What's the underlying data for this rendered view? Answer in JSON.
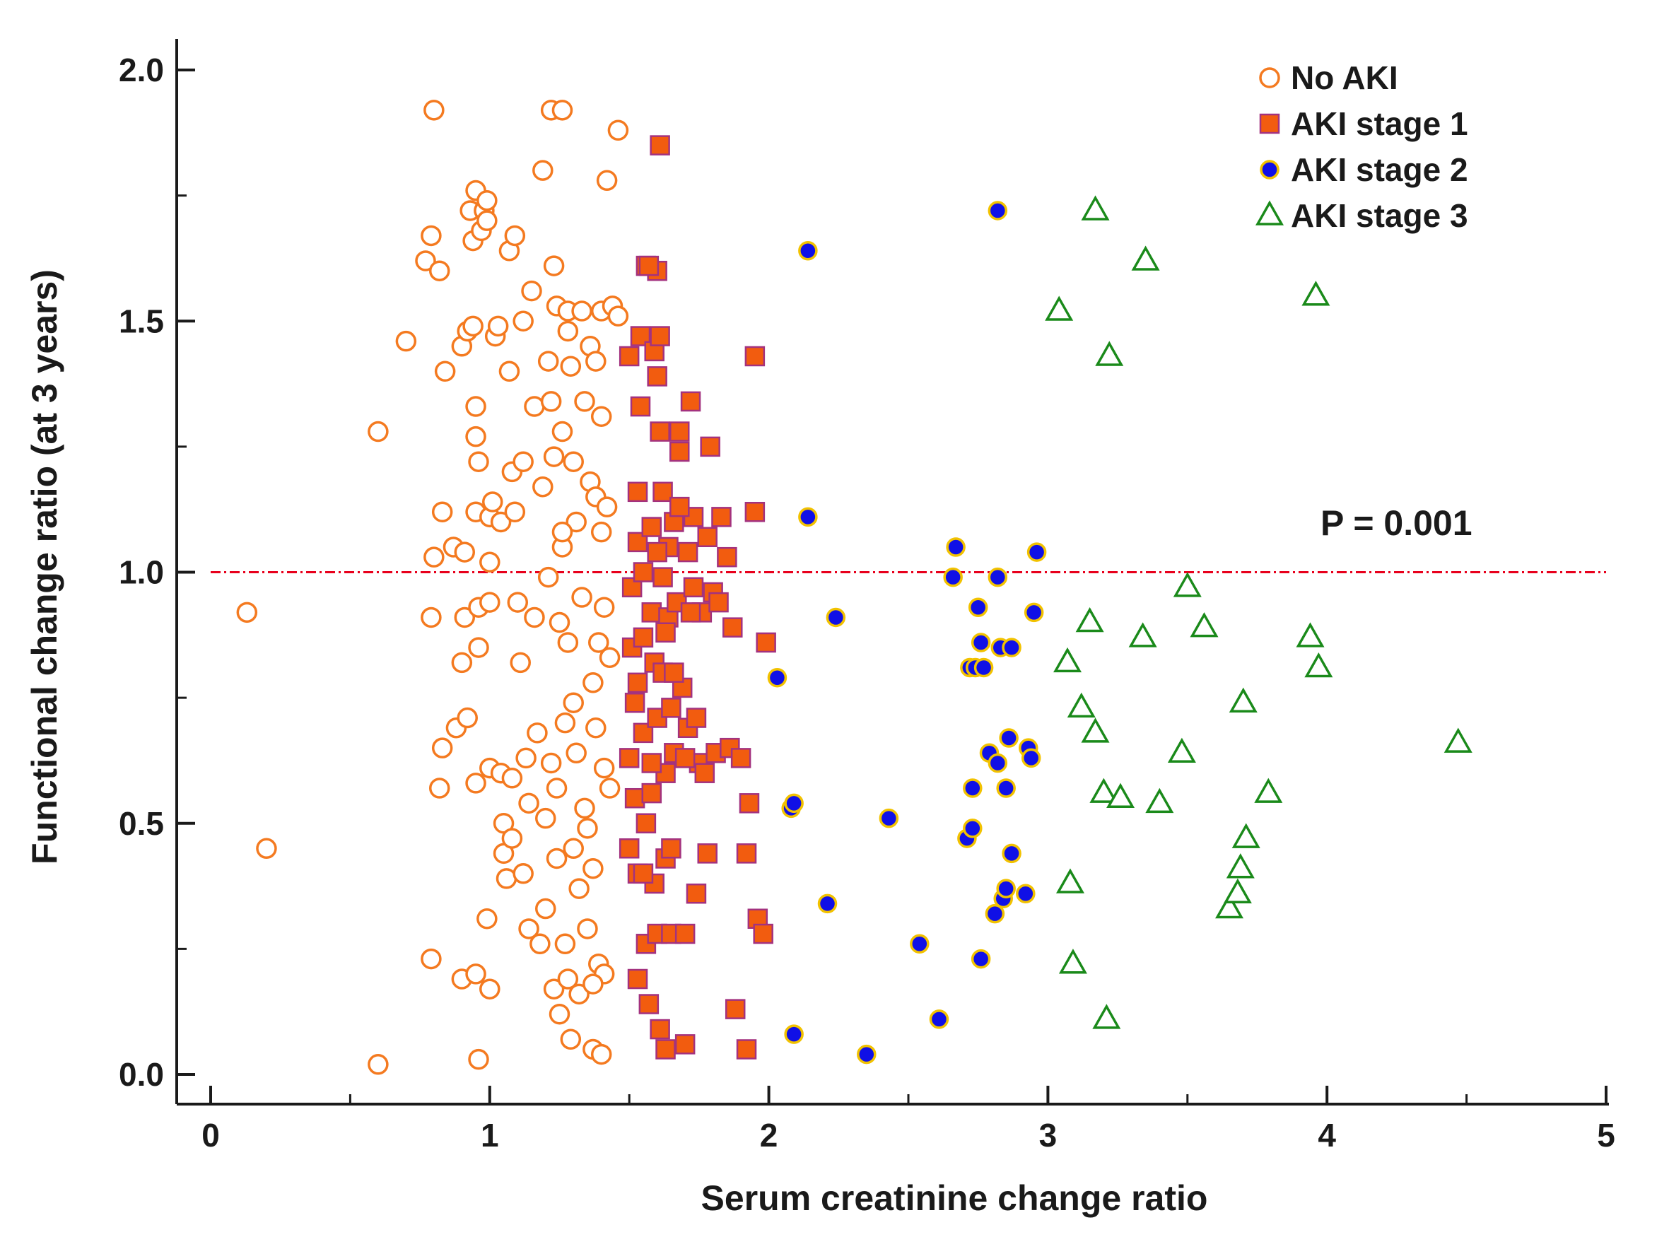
{
  "chart_data": {
    "type": "scatter",
    "title": "",
    "xlabel": "Serum creatinine change ratio",
    "ylabel": "Functional change ratio (at 3 years)",
    "xlim": [
      0,
      5
    ],
    "ylim": [
      0,
      2
    ],
    "x_ticks": [
      "0",
      "1",
      "2",
      "3",
      "4",
      "5"
    ],
    "y_ticks": [
      "0.0",
      "0.5",
      "1.0",
      "1.5",
      "2.0"
    ],
    "reference_line": {
      "y": 1.0,
      "color": "#e8001c",
      "style": "dash-dot"
    },
    "annotation": "P = 0.001",
    "legend_position": "top-right",
    "grid": false,
    "series": [
      {
        "name": "No AKI",
        "marker": "open-circle",
        "color": "#f47a20",
        "points": [
          [
            0.13,
            0.92
          ],
          [
            0.2,
            0.45
          ],
          [
            0.6,
            0.02
          ],
          [
            0.6,
            1.28
          ],
          [
            0.7,
            1.46
          ],
          [
            0.77,
            1.62
          ],
          [
            0.79,
            1.67
          ],
          [
            0.8,
            1.92
          ],
          [
            0.8,
            1.03
          ],
          [
            0.79,
            0.91
          ],
          [
            0.79,
            0.23
          ],
          [
            0.82,
            1.6
          ],
          [
            0.83,
            1.12
          ],
          [
            0.83,
            0.65
          ],
          [
            0.82,
            0.57
          ],
          [
            0.84,
            1.4
          ],
          [
            0.87,
            1.05
          ],
          [
            0.88,
            0.69
          ],
          [
            0.9,
            1.45
          ],
          [
            0.9,
            0.82
          ],
          [
            0.9,
            0.19
          ],
          [
            0.91,
            1.04
          ],
          [
            0.92,
            0.71
          ],
          [
            0.91,
            0.91
          ],
          [
            0.92,
            1.48
          ],
          [
            0.93,
            1.72
          ],
          [
            0.94,
            1.66
          ],
          [
            0.94,
            1.49
          ],
          [
            0.95,
            1.76
          ],
          [
            0.95,
            1.33
          ],
          [
            0.95,
            1.27
          ],
          [
            0.96,
            1.22
          ],
          [
            0.95,
            1.12
          ],
          [
            0.96,
            0.93
          ],
          [
            0.96,
            0.85
          ],
          [
            0.95,
            0.58
          ],
          [
            0.95,
            0.2
          ],
          [
            0.96,
            0.03
          ],
          [
            0.97,
            1.68
          ],
          [
            0.98,
            1.72
          ],
          [
            0.99,
            1.74
          ],
          [
            0.99,
            1.7
          ],
          [
            1.0,
            1.11
          ],
          [
            1.0,
            1.02
          ],
          [
            1.0,
            0.94
          ],
          [
            1.0,
            0.61
          ],
          [
            0.99,
            0.31
          ],
          [
            1.0,
            0.17
          ],
          [
            1.01,
            1.14
          ],
          [
            1.02,
            1.47
          ],
          [
            1.03,
            1.49
          ],
          [
            1.04,
            1.1
          ],
          [
            1.04,
            0.6
          ],
          [
            1.05,
            0.44
          ],
          [
            1.05,
            0.5
          ],
          [
            1.06,
            0.39
          ],
          [
            1.07,
            1.4
          ],
          [
            1.07,
            1.64
          ],
          [
            1.08,
            1.2
          ],
          [
            1.08,
            0.59
          ],
          [
            1.08,
            0.47
          ],
          [
            1.09,
            1.12
          ],
          [
            1.09,
            1.67
          ],
          [
            1.1,
            0.94
          ],
          [
            1.11,
            0.82
          ],
          [
            1.12,
            1.5
          ],
          [
            1.12,
            1.22
          ],
          [
            1.12,
            0.4
          ],
          [
            1.13,
            0.63
          ],
          [
            1.14,
            0.54
          ],
          [
            1.14,
            0.29
          ],
          [
            1.15,
            1.56
          ],
          [
            1.16,
            1.33
          ],
          [
            1.16,
            0.91
          ],
          [
            1.17,
            0.68
          ],
          [
            1.18,
            0.26
          ],
          [
            1.19,
            1.8
          ],
          [
            1.19,
            1.17
          ],
          [
            1.2,
            0.51
          ],
          [
            1.2,
            0.33
          ],
          [
            1.21,
            1.42
          ],
          [
            1.21,
            0.99
          ],
          [
            1.22,
            1.92
          ],
          [
            1.22,
            1.34
          ],
          [
            1.22,
            0.62
          ],
          [
            1.23,
            1.61
          ],
          [
            1.23,
            1.23
          ],
          [
            1.23,
            0.17
          ],
          [
            1.24,
            1.53
          ],
          [
            1.24,
            0.57
          ],
          [
            1.25,
            0.9
          ],
          [
            1.25,
            0.12
          ],
          [
            1.26,
            1.92
          ],
          [
            1.26,
            1.28
          ],
          [
            1.26,
            1.05
          ],
          [
            1.27,
            0.7
          ],
          [
            1.27,
            0.26
          ],
          [
            1.28,
            1.52
          ],
          [
            1.28,
            1.48
          ],
          [
            1.28,
            0.86
          ],
          [
            1.29,
            1.41
          ],
          [
            1.29,
            0.07
          ],
          [
            1.3,
            1.22
          ],
          [
            1.3,
            0.45
          ],
          [
            1.31,
            1.1
          ],
          [
            1.31,
            0.64
          ],
          [
            1.32,
            0.16
          ],
          [
            1.33,
            1.52
          ],
          [
            1.33,
            0.95
          ],
          [
            1.34,
            1.34
          ],
          [
            1.34,
            0.53
          ],
          [
            1.35,
            0.29
          ],
          [
            1.36,
            1.45
          ],
          [
            1.36,
            1.18
          ],
          [
            1.37,
            0.78
          ],
          [
            1.37,
            0.41
          ],
          [
            1.37,
            0.05
          ],
          [
            1.38,
            1.42
          ],
          [
            1.38,
            1.15
          ],
          [
            1.38,
            0.69
          ],
          [
            1.39,
            0.86
          ],
          [
            1.39,
            0.22
          ],
          [
            1.4,
            1.52
          ],
          [
            1.4,
            1.31
          ],
          [
            1.4,
            1.08
          ],
          [
            1.41,
            0.93
          ],
          [
            1.41,
            0.61
          ],
          [
            1.41,
            0.2
          ],
          [
            1.42,
            1.78
          ],
          [
            1.42,
            1.13
          ],
          [
            1.43,
            0.57
          ],
          [
            1.43,
            0.83
          ],
          [
            1.44,
            1.53
          ],
          [
            1.46,
            1.88
          ],
          [
            1.46,
            1.51
          ],
          [
            1.4,
            0.04
          ],
          [
            1.37,
            0.18
          ],
          [
            1.35,
            0.49
          ],
          [
            1.32,
            0.37
          ],
          [
            1.3,
            0.74
          ],
          [
            1.28,
            0.19
          ],
          [
            1.26,
            1.08
          ],
          [
            1.24,
            0.43
          ]
        ]
      },
      {
        "name": "AKI stage 1",
        "marker": "filled-square",
        "color": "#f25c0f",
        "stroke": "#a3327f",
        "points": [
          [
            1.5,
            1.43
          ],
          [
            1.5,
            0.63
          ],
          [
            1.5,
            0.45
          ],
          [
            1.51,
            0.97
          ],
          [
            1.51,
            0.85
          ],
          [
            1.52,
            0.74
          ],
          [
            1.52,
            0.55
          ],
          [
            1.53,
            1.16
          ],
          [
            1.53,
            1.06
          ],
          [
            1.53,
            0.78
          ],
          [
            1.53,
            0.4
          ],
          [
            1.53,
            0.19
          ],
          [
            1.54,
            1.47
          ],
          [
            1.54,
            1.33
          ],
          [
            1.55,
            1.0
          ],
          [
            1.55,
            0.87
          ],
          [
            1.55,
            0.68
          ],
          [
            1.56,
            1.61
          ],
          [
            1.56,
            0.5
          ],
          [
            1.56,
            0.26
          ],
          [
            1.57,
            0.14
          ],
          [
            1.58,
            1.09
          ],
          [
            1.58,
            0.92
          ],
          [
            1.58,
            0.56
          ],
          [
            1.59,
            1.44
          ],
          [
            1.59,
            0.82
          ],
          [
            1.59,
            0.38
          ],
          [
            1.6,
            1.6
          ],
          [
            1.6,
            1.39
          ],
          [
            1.6,
            0.71
          ],
          [
            1.6,
            0.28
          ],
          [
            1.61,
            1.85
          ],
          [
            1.61,
            1.47
          ],
          [
            1.61,
            1.28
          ],
          [
            1.61,
            0.09
          ],
          [
            1.62,
            1.16
          ],
          [
            1.62,
            0.99
          ],
          [
            1.62,
            0.8
          ],
          [
            1.63,
            0.6
          ],
          [
            1.63,
            0.43
          ],
          [
            1.63,
            0.05
          ],
          [
            1.64,
            1.05
          ],
          [
            1.64,
            0.91
          ],
          [
            1.65,
            0.73
          ],
          [
            1.65,
            0.28
          ],
          [
            1.66,
            1.1
          ],
          [
            1.66,
            0.64
          ],
          [
            1.67,
            0.94
          ],
          [
            1.68,
            1.28
          ],
          [
            1.68,
            1.24
          ],
          [
            1.69,
            0.77
          ],
          [
            1.7,
            0.28
          ],
          [
            1.7,
            0.06
          ],
          [
            1.71,
            1.04
          ],
          [
            1.71,
            0.69
          ],
          [
            1.72,
            1.34
          ],
          [
            1.73,
            1.11
          ],
          [
            1.73,
            0.97
          ],
          [
            1.74,
            0.71
          ],
          [
            1.74,
            0.36
          ],
          [
            1.75,
            0.62
          ],
          [
            1.76,
            0.92
          ],
          [
            1.77,
            0.6
          ],
          [
            1.78,
            0.44
          ],
          [
            1.78,
            1.07
          ],
          [
            1.79,
            1.25
          ],
          [
            1.8,
            0.96
          ],
          [
            1.81,
            0.64
          ],
          [
            1.82,
            0.94
          ],
          [
            1.83,
            1.11
          ],
          [
            1.85,
            1.03
          ],
          [
            1.86,
            0.65
          ],
          [
            1.87,
            0.89
          ],
          [
            1.88,
            0.13
          ],
          [
            1.9,
            0.63
          ],
          [
            1.92,
            0.44
          ],
          [
            1.92,
            0.05
          ],
          [
            1.93,
            0.54
          ],
          [
            1.95,
            1.43
          ],
          [
            1.95,
            1.12
          ],
          [
            1.96,
            0.31
          ],
          [
            1.98,
            0.28
          ],
          [
            1.99,
            0.86
          ],
          [
            1.57,
            1.61
          ],
          [
            1.6,
            1.04
          ],
          [
            1.55,
            0.4
          ],
          [
            1.65,
            0.45
          ],
          [
            1.7,
            0.63
          ],
          [
            1.66,
            0.8
          ],
          [
            1.58,
            0.62
          ],
          [
            1.63,
            0.88
          ],
          [
            1.72,
            0.92
          ],
          [
            1.68,
            1.13
          ]
        ]
      },
      {
        "name": "AKI stage 2",
        "marker": "filled-circle",
        "color": "#1010e6",
        "stroke": "#f2c200",
        "points": [
          [
            2.03,
            0.79
          ],
          [
            2.08,
            0.53
          ],
          [
            2.09,
            0.54
          ],
          [
            2.09,
            0.08
          ],
          [
            2.14,
            1.64
          ],
          [
            2.14,
            1.11
          ],
          [
            2.21,
            0.34
          ],
          [
            2.24,
            0.91
          ],
          [
            2.35,
            0.04
          ],
          [
            2.43,
            0.51
          ],
          [
            2.54,
            0.26
          ],
          [
            2.61,
            0.11
          ],
          [
            2.66,
            0.99
          ],
          [
            2.67,
            1.05
          ],
          [
            2.71,
            0.47
          ],
          [
            2.72,
            0.81
          ],
          [
            2.73,
            0.57
          ],
          [
            2.73,
            0.49
          ],
          [
            2.74,
            0.81
          ],
          [
            2.75,
            0.93
          ],
          [
            2.76,
            0.86
          ],
          [
            2.76,
            0.23
          ],
          [
            2.77,
            0.81
          ],
          [
            2.79,
            0.64
          ],
          [
            2.81,
            0.32
          ],
          [
            2.82,
            0.62
          ],
          [
            2.82,
            0.99
          ],
          [
            2.82,
            1.72
          ],
          [
            2.83,
            0.85
          ],
          [
            2.84,
            0.35
          ],
          [
            2.85,
            0.57
          ],
          [
            2.85,
            0.37
          ],
          [
            2.86,
            0.67
          ],
          [
            2.87,
            0.85
          ],
          [
            2.87,
            0.44
          ],
          [
            2.92,
            0.36
          ],
          [
            2.93,
            0.65
          ],
          [
            2.94,
            0.63
          ],
          [
            2.95,
            0.92
          ],
          [
            2.96,
            1.04
          ]
        ]
      },
      {
        "name": "AKI stage 3",
        "marker": "open-triangle",
        "color": "#1a8a1a",
        "points": [
          [
            3.04,
            1.52
          ],
          [
            3.07,
            0.82
          ],
          [
            3.08,
            0.38
          ],
          [
            3.09,
            0.22
          ],
          [
            3.12,
            0.73
          ],
          [
            3.15,
            0.9
          ],
          [
            3.17,
            1.72
          ],
          [
            3.17,
            0.68
          ],
          [
            3.2,
            0.56
          ],
          [
            3.21,
            0.11
          ],
          [
            3.22,
            1.43
          ],
          [
            3.26,
            0.55
          ],
          [
            3.34,
            0.87
          ],
          [
            3.35,
            1.62
          ],
          [
            3.4,
            0.54
          ],
          [
            3.48,
            0.64
          ],
          [
            3.5,
            0.97
          ],
          [
            3.56,
            0.89
          ],
          [
            3.65,
            0.33
          ],
          [
            3.68,
            0.36
          ],
          [
            3.69,
            0.41
          ],
          [
            3.7,
            0.74
          ],
          [
            3.71,
            0.47
          ],
          [
            3.79,
            0.56
          ],
          [
            3.94,
            0.87
          ],
          [
            3.96,
            1.55
          ],
          [
            3.97,
            0.81
          ],
          [
            4.47,
            0.66
          ]
        ]
      }
    ]
  }
}
